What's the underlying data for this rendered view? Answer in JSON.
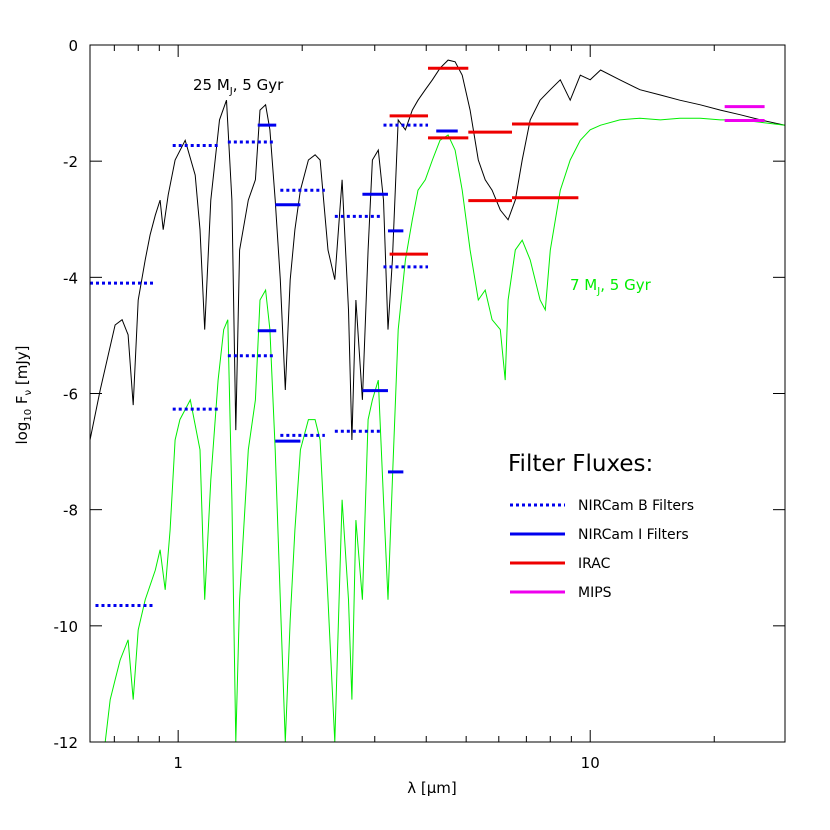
{
  "chart_data": {
    "type": "line",
    "xlabel": [
      "λ [",
      "μ",
      "m]"
    ],
    "ylabel": [
      "log",
      "10",
      " F",
      "ν",
      " [mJy]"
    ],
    "xlog": true,
    "xlim": [
      0.611,
      29.7
    ],
    "ylim": [
      -12,
      0
    ],
    "xticks": [
      1,
      10
    ],
    "xminor_ticks": [
      0.7,
      0.8,
      0.9,
      2,
      3,
      4,
      5,
      6,
      7,
      8,
      9,
      20
    ],
    "yticks": [
      -12,
      -10,
      -8,
      -6,
      -4,
      -2,
      0
    ],
    "annotations": [
      {
        "text": [
          "25 M",
          "J",
          ", 5 Gyr"
        ],
        "color": "#000000"
      },
      {
        "text": [
          "7 M",
          "J",
          ", 5 Gyr"
        ],
        "color": "#00ee00"
      }
    ],
    "series": [
      {
        "name": "25 MJ, 5 Gyr",
        "color": "#000000",
        "x": [
          0.611,
          0.647,
          0.703,
          0.731,
          0.756,
          0.778,
          0.8,
          0.832,
          0.855,
          0.88,
          0.904,
          0.92,
          0.946,
          0.983,
          1.04,
          1.1,
          1.13,
          1.16,
          1.2,
          1.26,
          1.31,
          1.35,
          1.38,
          1.41,
          1.48,
          1.54,
          1.58,
          1.63,
          1.67,
          1.72,
          1.77,
          1.82,
          1.87,
          1.92,
          1.98,
          2.07,
          2.15,
          2.21,
          2.31,
          2.4,
          2.5,
          2.59,
          2.64,
          2.7,
          2.8,
          2.89,
          2.96,
          3.06,
          3.15,
          3.23,
          3.31,
          3.42,
          3.56,
          3.7,
          3.82,
          3.98,
          4.14,
          4.32,
          4.52,
          4.7,
          4.89,
          5.11,
          5.35,
          5.56,
          5.78,
          6.05,
          6.32,
          6.58,
          6.84,
          7.15,
          7.56,
          8.0,
          8.46,
          8.94,
          9.46,
          10.0,
          10.6,
          11.8,
          13.2,
          14.8,
          16.5,
          18.5,
          20.7,
          23.1,
          25.9,
          29.7
        ],
        "values": [
          -6.8,
          -5.94,
          -4.82,
          -4.73,
          -4.99,
          -6.2,
          -4.39,
          -3.7,
          -3.27,
          -2.93,
          -2.67,
          -3.18,
          -2.58,
          -1.98,
          -1.64,
          -2.24,
          -3.18,
          -4.9,
          -2.67,
          -1.29,
          -0.95,
          -2.67,
          -6.63,
          -3.53,
          -2.67,
          -2.32,
          -1.12,
          -1.03,
          -1.46,
          -2.67,
          -4.04,
          -5.94,
          -4.04,
          -3.18,
          -2.5,
          -1.98,
          -1.89,
          -1.98,
          -3.53,
          -4.04,
          -2.32,
          -4.56,
          -6.8,
          -4.39,
          -6.11,
          -3.53,
          -1.98,
          -1.81,
          -2.67,
          -4.9,
          -3.7,
          -1.29,
          -1.46,
          -1.12,
          -0.95,
          -0.77,
          -0.6,
          -0.4,
          -0.26,
          -0.29,
          -0.52,
          -1.12,
          -1.98,
          -2.32,
          -2.5,
          -2.84,
          -3.01,
          -2.67,
          -1.98,
          -1.29,
          -0.95,
          -0.77,
          -0.6,
          -0.95,
          -0.52,
          -0.6,
          -0.43,
          -0.6,
          -0.77,
          -0.86,
          -0.95,
          -1.03,
          -1.12,
          -1.2,
          -1.29,
          -1.38
        ]
      },
      {
        "name": "7 MJ, 5 Gyr",
        "color": "#00ee00",
        "x": [
          0.665,
          0.684,
          0.703,
          0.723,
          0.756,
          0.778,
          0.8,
          0.832,
          0.88,
          0.904,
          0.93,
          0.956,
          0.983,
          1.01,
          1.07,
          1.13,
          1.16,
          1.2,
          1.25,
          1.29,
          1.32,
          1.35,
          1.38,
          1.41,
          1.48,
          1.54,
          1.58,
          1.63,
          1.67,
          1.72,
          1.77,
          1.82,
          1.87,
          1.92,
          1.98,
          2.07,
          2.15,
          2.21,
          2.31,
          2.4,
          2.5,
          2.59,
          2.64,
          2.7,
          2.8,
          2.89,
          2.96,
          3.06,
          3.15,
          3.23,
          3.31,
          3.42,
          3.56,
          3.7,
          3.82,
          3.98,
          4.14,
          4.32,
          4.52,
          4.7,
          4.89,
          5.11,
          5.35,
          5.56,
          5.78,
          6.05,
          6.22,
          6.32,
          6.58,
          6.84,
          7.15,
          7.56,
          7.78,
          8.0,
          8.46,
          8.94,
          9.46,
          10.0,
          10.6,
          11.8,
          13.2,
          14.8,
          16.5,
          18.5,
          20.7,
          23.1,
          25.9,
          29.7
        ],
        "values": [
          -12,
          -11.27,
          -10.93,
          -10.59,
          -10.24,
          -11.27,
          -10.07,
          -9.55,
          -9.04,
          -8.69,
          -9.38,
          -8.35,
          -6.8,
          -6.45,
          -6.11,
          -6.97,
          -9.55,
          -7.49,
          -5.77,
          -4.9,
          -4.73,
          -7.83,
          -12,
          -9.55,
          -6.97,
          -6.11,
          -4.39,
          -4.22,
          -4.9,
          -6.97,
          -9.55,
          -12,
          -9.9,
          -8.35,
          -6.97,
          -6.45,
          -6.45,
          -6.8,
          -9.55,
          -12,
          -7.83,
          -9.55,
          -11.27,
          -8.18,
          -9.55,
          -6.45,
          -6.11,
          -5.77,
          -7.83,
          -9.55,
          -7.49,
          -4.9,
          -3.7,
          -3.01,
          -2.5,
          -2.32,
          -1.98,
          -1.64,
          -1.55,
          -1.81,
          -2.5,
          -3.53,
          -4.39,
          -4.22,
          -4.73,
          -4.9,
          -5.77,
          -4.39,
          -3.53,
          -3.36,
          -3.7,
          -4.39,
          -4.56,
          -3.53,
          -2.5,
          -1.98,
          -1.64,
          -1.46,
          -1.38,
          -1.29,
          -1.26,
          -1.29,
          -1.26,
          -1.26,
          -1.29,
          -1.29,
          -1.33,
          -1.38
        ]
      }
    ],
    "legend_title": "Filter Fluxes:",
    "filters": [
      {
        "name": "NIRCam B Filters",
        "color": "#0000ee",
        "dashed": true,
        "x_start": [
          0.611,
          0.63,
          0.97,
          0.97,
          1.32,
          1.32,
          1.77,
          1.77,
          2.4,
          2.4,
          3.15,
          3.15
        ],
        "x_end": [
          0.88,
          0.88,
          1.26,
          1.26,
          1.72,
          1.72,
          2.27,
          2.27,
          3.09,
          3.09,
          4.04,
          4.04
        ],
        "values": [
          -4.1,
          -9.65,
          -1.73,
          -6.27,
          -1.67,
          -5.35,
          -2.5,
          -6.72,
          -2.95,
          -6.65,
          -1.38,
          -3.82
        ]
      },
      {
        "name": "NIRCam I Filters",
        "color": "#0000ee",
        "dashed": false,
        "x_start": [
          1.56,
          1.56,
          1.72,
          1.72,
          2.8,
          2.8,
          3.23,
          3.23,
          4.23
        ],
        "x_end": [
          1.73,
          1.73,
          1.98,
          1.98,
          3.23,
          3.23,
          3.52,
          3.52,
          4.77
        ],
        "values": [
          -1.38,
          -4.92,
          -2.75,
          -6.82,
          -2.57,
          -5.95,
          -3.2,
          -7.35,
          -1.48
        ]
      },
      {
        "name": "IRAC",
        "color": "#ee0000",
        "dashed": false,
        "x_start": [
          3.26,
          3.26,
          4.04,
          4.04,
          5.06,
          5.06,
          6.46,
          6.46
        ],
        "x_end": [
          4.04,
          4.04,
          5.06,
          5.06,
          6.46,
          6.46,
          9.36,
          9.36
        ],
        "values": [
          -1.22,
          -3.6,
          -0.4,
          -1.6,
          -1.5,
          -2.68,
          -1.36,
          -2.63
        ]
      },
      {
        "name": "MIPS",
        "color": "#ee00ee",
        "dashed": false,
        "x_start": [
          21.2,
          21.2
        ],
        "x_end": [
          26.5,
          26.5
        ],
        "values": [
          -1.06,
          -1.3
        ]
      }
    ]
  }
}
